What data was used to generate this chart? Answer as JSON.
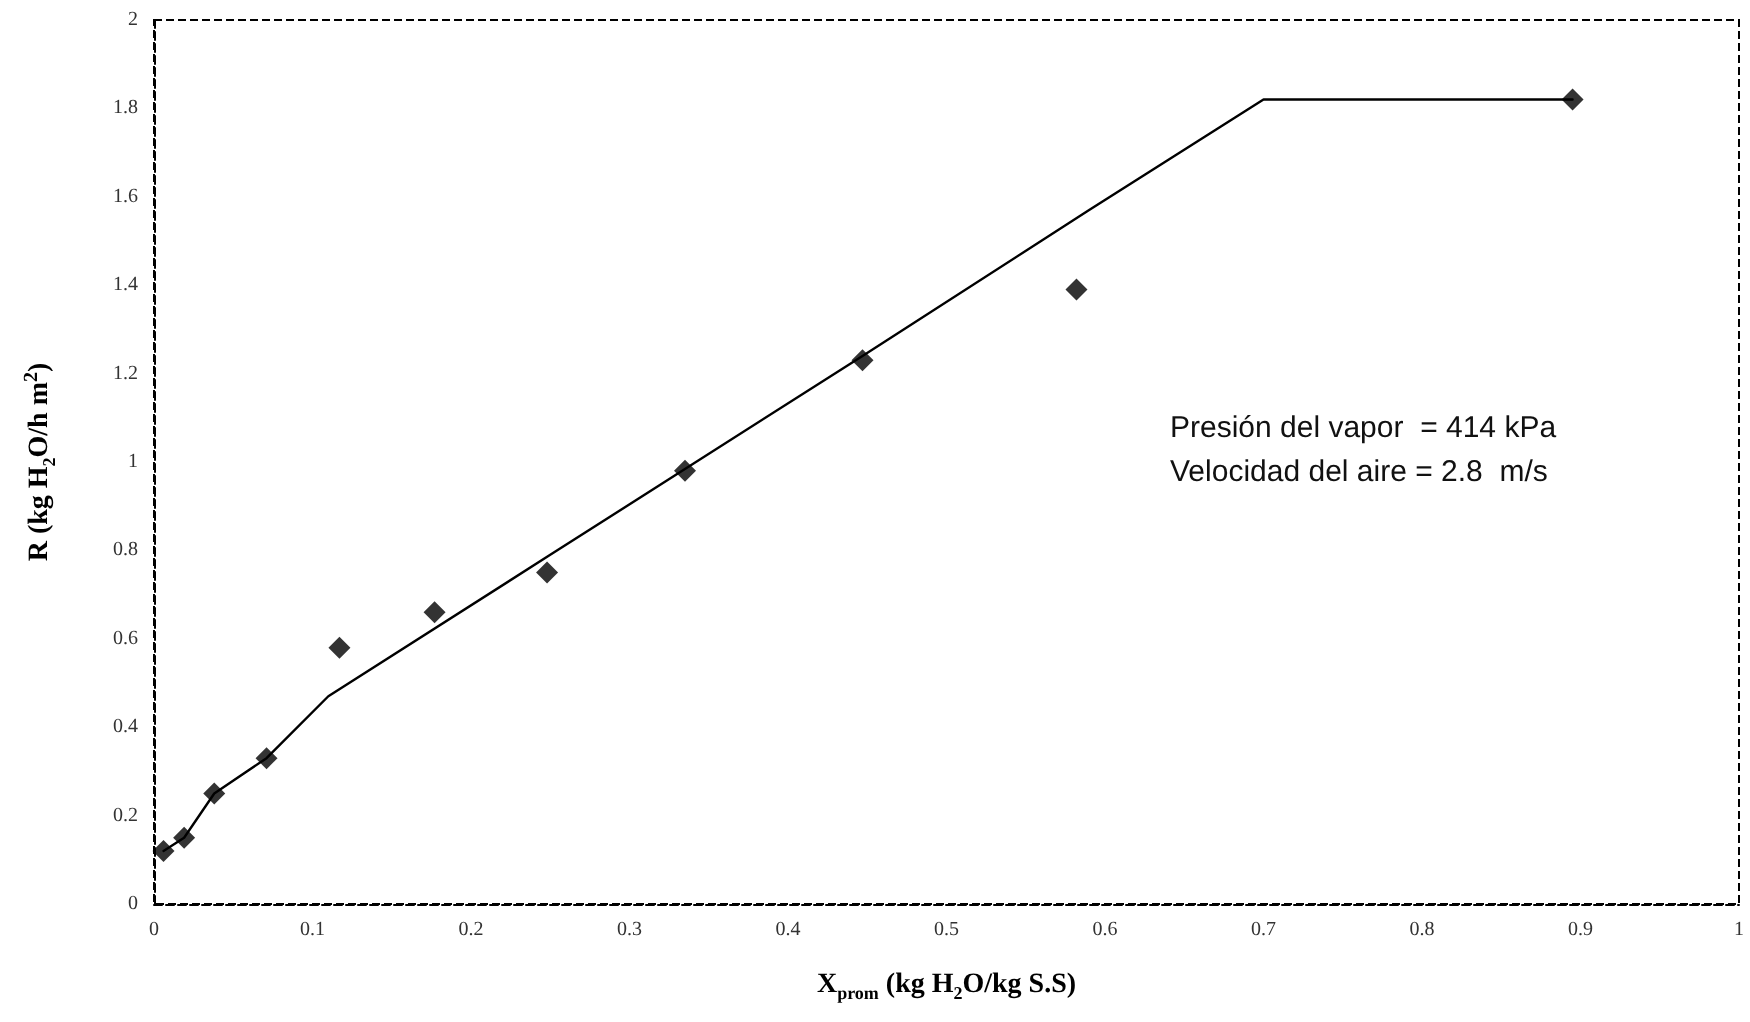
{
  "chart_data": {
    "type": "scatter",
    "xlabel": "X$_{prom}$ (kg H$_{2}$O/kg S.S)",
    "ylabel": "R (kg H$_{2}$O/h m$^{2}$)",
    "annotations": [
      "Presión del vapor  = 414 kPa",
      "Velocidad del aire = 2.8  m/s"
    ],
    "series": [
      {
        "color": "#000000",
        "marker": "diamond",
        "x": [
          0.006,
          0.019,
          0.038,
          0.071,
          0.117,
          0.177,
          0.248,
          0.335,
          0.447,
          0.582,
          0.895
        ],
        "values": [
          0.12,
          0.15,
          0.25,
          0.33,
          0.58,
          0.66,
          0.75,
          0.98,
          1.23,
          1.39,
          1.82
        ]
      },
      {
        "type": "line",
        "color": "#000000",
        "marker": "none",
        "line_style": "solid",
        "x": [
          0.006,
          0.019,
          0.038,
          0.071,
          0.11,
          0.25,
          0.447,
          0.59,
          0.7,
          0.895
        ],
        "values": [
          0.12,
          0.15,
          0.25,
          0.33,
          0.47,
          0.79,
          1.24,
          1.57,
          1.82,
          1.82
        ]
      }
    ],
    "xlim": [
      0,
      1
    ],
    "xticks": [
      0,
      0.1,
      0.2,
      0.3,
      0.4,
      0.5,
      0.6,
      0.7,
      0.8,
      0.9,
      1
    ],
    "ylim": [
      0,
      2
    ],
    "yticks": [
      0,
      0.2,
      0.4,
      0.6,
      0.8,
      1,
      1.2,
      1.4,
      1.6,
      1.8,
      2
    ],
    "grid": false
  }
}
